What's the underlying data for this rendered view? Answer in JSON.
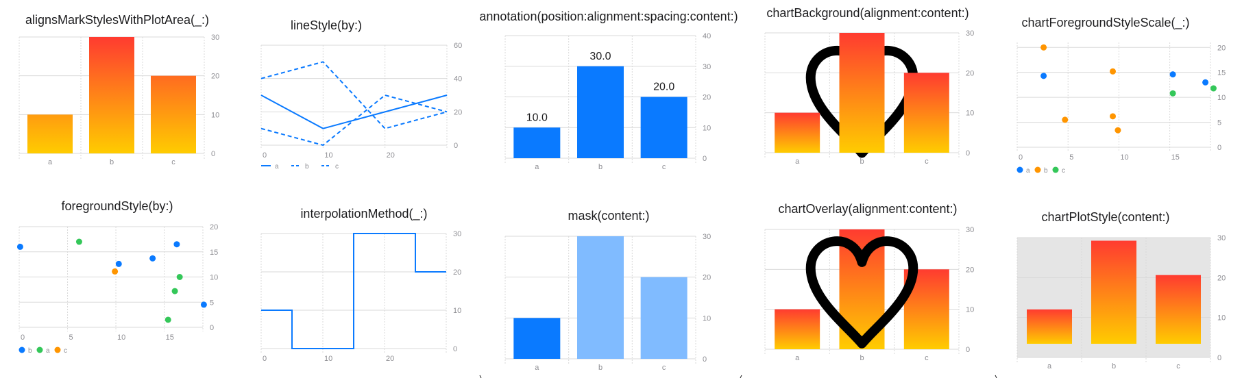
{
  "colors": {
    "blue": "#0a7aff",
    "orange": "#ff9500",
    "green": "#34c759",
    "red": "#ff3b30",
    "gradient_top": "#ff3b30",
    "gradient_bottom": "#ffcc00",
    "light_blue": "#80bbff",
    "grid": "#d9d9d9",
    "axis_text": "#8e8e93",
    "plot_bg": "#e5e5e5"
  },
  "chart_data": [
    {
      "id": "c1",
      "type": "bar",
      "title": "alignsMarkStylesWithPlotArea(_:)",
      "categories": [
        "a",
        "b",
        "c"
      ],
      "values": [
        10,
        30,
        20
      ],
      "ylim": [
        0,
        30
      ],
      "yticks": [
        0,
        10,
        20,
        30
      ],
      "fill": "gradient-aligned-to-plot-area",
      "grid": true
    },
    {
      "id": "c2",
      "type": "line",
      "title": "lineStyle(by:)",
      "xlim": [
        0,
        30
      ],
      "xticks": [
        0,
        10,
        20
      ],
      "ylim": [
        0,
        60
      ],
      "yticks": [
        0,
        20,
        40,
        60
      ],
      "series": [
        {
          "name": "a",
          "style": "solid",
          "x": [
            0,
            10,
            30
          ],
          "y": [
            30,
            10,
            30
          ]
        },
        {
          "name": "b",
          "style": "dashed",
          "x": [
            0,
            10,
            20,
            30
          ],
          "y": [
            40,
            50,
            10,
            20
          ]
        },
        {
          "name": "c",
          "style": "dashed",
          "x": [
            0,
            10,
            20,
            30
          ],
          "y": [
            10,
            0,
            30,
            20
          ]
        }
      ],
      "legend": [
        "a",
        "b",
        "c"
      ],
      "legend_position": "bottom-left",
      "grid": true
    },
    {
      "id": "c3",
      "type": "bar",
      "title": "annotation(position:alignment:spacing:content:)",
      "categories": [
        "a",
        "b",
        "c"
      ],
      "values": [
        10,
        30,
        20
      ],
      "annotations": [
        "10.0",
        "30.0",
        "20.0"
      ],
      "ylim": [
        0,
        40
      ],
      "yticks": [
        0,
        10,
        20,
        30,
        40
      ],
      "fill": "blue",
      "grid": true
    },
    {
      "id": "c4",
      "type": "bar",
      "title": "chartBackground(alignment:content:)",
      "categories": [
        "a",
        "b",
        "c"
      ],
      "values": [
        10,
        30,
        20
      ],
      "ylim": [
        0,
        30
      ],
      "yticks": [
        0,
        10,
        20,
        30
      ],
      "fill": "gradient-per-bar",
      "decoration": "heart-outline-behind",
      "grid": true
    },
    {
      "id": "c5",
      "type": "scatter",
      "title": "chartForegroundStyleScale(_:)",
      "xlim": [
        0,
        19
      ],
      "xticks": [
        0,
        5,
        10,
        15
      ],
      "ylim": [
        0,
        21
      ],
      "yticks": [
        0,
        5,
        10,
        15,
        20
      ],
      "series": [
        {
          "name": "a",
          "color": "blue",
          "points": [
            [
              2.6,
              14.3
            ],
            [
              15.3,
              14.6
            ],
            [
              18.5,
              13.0
            ]
          ]
        },
        {
          "name": "b",
          "color": "orange",
          "points": [
            [
              2.6,
              20.0
            ],
            [
              9.4,
              15.2
            ],
            [
              4.7,
              5.5
            ],
            [
              9.4,
              6.2
            ],
            [
              9.9,
              3.4
            ]
          ]
        },
        {
          "name": "c",
          "color": "green",
          "points": [
            [
              15.3,
              10.8
            ],
            [
              19.3,
              11.8
            ]
          ]
        }
      ],
      "legend": [
        "a",
        "b",
        "c"
      ],
      "legend_position": "bottom-left",
      "grid": true
    },
    {
      "id": "c6",
      "type": "scatter",
      "title": "foregroundStyle(by:)",
      "xlim": [
        0,
        19
      ],
      "xticks": [
        0,
        5,
        10,
        15
      ],
      "ylim": [
        0,
        20
      ],
      "yticks": [
        0,
        5,
        10,
        15,
        20
      ],
      "series": [
        {
          "name": "b",
          "color": "blue",
          "points": [
            [
              0.1,
              16.0
            ],
            [
              10.3,
              12.6
            ],
            [
              13.8,
              13.7
            ],
            [
              16.3,
              16.5
            ],
            [
              19.1,
              4.5
            ]
          ]
        },
        {
          "name": "a",
          "color": "green",
          "points": [
            [
              6.2,
              17.0
            ],
            [
              16.6,
              10.0
            ],
            [
              16.1,
              7.2
            ],
            [
              15.4,
              1.5
            ]
          ]
        },
        {
          "name": "c",
          "color": "orange",
          "points": [
            [
              9.9,
              11.1
            ]
          ]
        }
      ],
      "legend": [
        "b",
        "a",
        "c"
      ],
      "legend_position": "bottom-left",
      "grid": true
    },
    {
      "id": "c7",
      "type": "line",
      "title": "interpolationMethod(_:)",
      "interpolation": "step-center",
      "xlim": [
        0,
        30
      ],
      "xticks": [
        0,
        10,
        20
      ],
      "ylim": [
        0,
        30
      ],
      "yticks": [
        0,
        10,
        20,
        30
      ],
      "series": [
        {
          "name": "",
          "style": "solid",
          "x": [
            0,
            5,
            15,
            25,
            30
          ],
          "y": [
            10,
            0,
            30,
            20,
            20
          ]
        }
      ],
      "grid": true
    },
    {
      "id": "c8",
      "type": "bar",
      "title": "mask(content:)",
      "categories": [
        "a",
        "b",
        "c"
      ],
      "values": [
        10,
        30,
        20
      ],
      "ylim": [
        0,
        30
      ],
      "yticks": [
        0,
        10,
        20,
        30
      ],
      "fill": "blue-masked",
      "grid": true
    },
    {
      "id": "c9",
      "type": "bar",
      "title": "chartOverlay(alignment:content:)",
      "categories": [
        "a",
        "b",
        "c"
      ],
      "values": [
        10,
        30,
        20
      ],
      "ylim": [
        0,
        30
      ],
      "yticks": [
        0,
        10,
        20,
        30
      ],
      "fill": "gradient-per-bar",
      "decoration": "heart-outline-over",
      "grid": true
    },
    {
      "id": "c10",
      "type": "bar",
      "title": "chartPlotStyle(content:)",
      "categories": [
        "a",
        "b",
        "c"
      ],
      "values": [
        10,
        30,
        20
      ],
      "ylim": [
        0,
        30
      ],
      "yticks": [
        0,
        10,
        20,
        30
      ],
      "fill": "gradient-per-bar",
      "plot_background": "gray",
      "grid": true
    }
  ]
}
